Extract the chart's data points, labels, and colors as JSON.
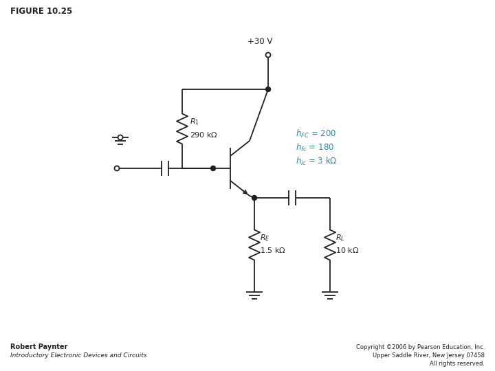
{
  "title": "FIGURE 10.25",
  "vcc_label": "+30 V",
  "param_color": "#1a8fc1",
  "line_color": "#231f20",
  "bg_color": "#ffffff",
  "author": "Robert Paynter",
  "book": "Introductory Electronic Devices and Circuits",
  "copyright": "Copyright ©2006 by Pearson Education, Inc.",
  "copyright2": "Upper Saddle River, New Jersey 07458",
  "copyright3": "All rights reserved."
}
